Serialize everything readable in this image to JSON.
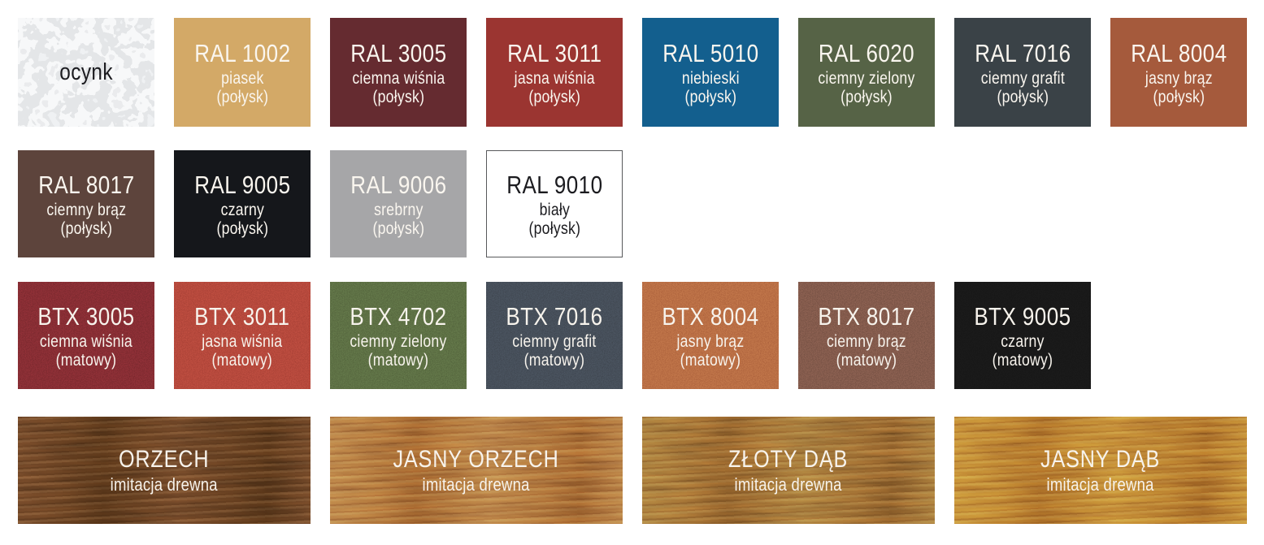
{
  "page": {
    "background": "#ffffff",
    "description_labels": {
      "gloss_finish": "(połysk)",
      "matte_finish": "(matowy)",
      "wood_imitation": "imitacja drewna"
    }
  },
  "palette": {
    "rows": [
      {
        "type": "standard",
        "items": [
          {
            "id": "ocynk",
            "code": "ocynk",
            "name": "",
            "finish": "",
            "bg": "#D3D5D8",
            "text": "#1B1B1F",
            "texture": "galvanized"
          },
          {
            "id": "ral-1002",
            "code": "RAL 1002",
            "name": "piasek",
            "finish": "(połysk)",
            "bg": "#D3A967",
            "text": "#FAF6EF",
            "texture": "solid"
          },
          {
            "id": "ral-3005",
            "code": "RAL 3005",
            "name": "ciemna wiśnia",
            "finish": "(połysk)",
            "bg": "#652B30",
            "text": "#FAF6EF",
            "texture": "solid"
          },
          {
            "id": "ral-3011",
            "code": "RAL 3011",
            "name": "jasna wiśnia",
            "finish": "(połysk)",
            "bg": "#9B3531",
            "text": "#FAF6EF",
            "texture": "solid"
          },
          {
            "id": "ral-5010",
            "code": "RAL 5010",
            "name": "niebieski",
            "finish": "(połysk)",
            "bg": "#135F8E",
            "text": "#FAF6EF",
            "texture": "solid"
          },
          {
            "id": "ral-6020",
            "code": "RAL 6020",
            "name": "ciemny zielony",
            "finish": "(połysk)",
            "bg": "#566346",
            "text": "#FAF6EF",
            "texture": "solid"
          },
          {
            "id": "ral-7016",
            "code": "RAL 7016",
            "name": "ciemny grafit",
            "finish": "(połysk)",
            "bg": "#3A4247",
            "text": "#FAF6EF",
            "texture": "solid"
          },
          {
            "id": "ral-8004",
            "code": "RAL 8004",
            "name": "jasny brąz",
            "finish": "(połysk)",
            "bg": "#A55A3C",
            "text": "#FAF6EF",
            "texture": "solid"
          }
        ]
      },
      {
        "type": "standard",
        "items": [
          {
            "id": "ral-8017",
            "code": "RAL 8017",
            "name": "ciemny brąz",
            "finish": "(połysk)",
            "bg": "#5D443C",
            "text": "#FAF6EF",
            "texture": "solid"
          },
          {
            "id": "ral-9005",
            "code": "RAL 9005",
            "name": "czarny",
            "finish": "(połysk)",
            "bg": "#15171B",
            "text": "#FAF6EF",
            "texture": "solid"
          },
          {
            "id": "ral-9006",
            "code": "RAL 9006",
            "name": "srebrny",
            "finish": "(połysk)",
            "bg": "#A6A6A8",
            "text": "#FAF6EF",
            "texture": "solid"
          },
          {
            "id": "ral-9010",
            "code": "RAL 9010",
            "name": "biały",
            "finish": "(połysk)",
            "bg": "#FFFFFF",
            "text": "#1B1B1F",
            "texture": "solid",
            "border": "#58595B"
          }
        ]
      },
      {
        "type": "standard",
        "items": [
          {
            "id": "btx-3005",
            "code": "BTX 3005",
            "name": "ciemna wiśnia",
            "finish": "(matowy)",
            "bg": "#6F252A",
            "text": "#F7F3EC",
            "texture": "matte"
          },
          {
            "id": "btx-3011",
            "code": "BTX 3011",
            "name": "jasna wiśnia",
            "finish": "(matowy)",
            "bg": "#A13B31",
            "text": "#F7F3EC",
            "texture": "matte"
          },
          {
            "id": "btx-4702",
            "code": "BTX 4702",
            "name": "ciemny zielony",
            "finish": "(matowy)",
            "bg": "#4C5C38",
            "text": "#F7F3EC",
            "texture": "matte"
          },
          {
            "id": "btx-7016",
            "code": "BTX 7016",
            "name": "ciemny grafit",
            "finish": "(matowy)",
            "bg": "#394049",
            "text": "#F7F3EC",
            "texture": "matte"
          },
          {
            "id": "btx-8004",
            "code": "BTX 8004",
            "name": "jasny brąz",
            "finish": "(matowy)",
            "bg": "#A65A38",
            "text": "#F7F3EC",
            "texture": "matte"
          },
          {
            "id": "btx-8017",
            "code": "BTX 8017",
            "name": "ciemny brąz",
            "finish": "(matowy)",
            "bg": "#6B4A3E",
            "text": "#F7F3EC",
            "texture": "matte"
          },
          {
            "id": "btx-9005",
            "code": "BTX 9005",
            "name": "czarny",
            "finish": "(matowy)",
            "bg": "#141414",
            "text": "#F7F3EC",
            "texture": "matte"
          }
        ]
      },
      {
        "type": "wood",
        "items": [
          {
            "id": "orzech",
            "code": "ORZECH",
            "name": "imitacja drewna",
            "finish": "",
            "bg": "#5E3B21",
            "bg2": "#4A2D15",
            "text": "#F7F3EC",
            "texture": "wood"
          },
          {
            "id": "jasny-orzech",
            "code": "JASNY ORZECH",
            "name": "imitacja drewna",
            "finish": "",
            "bg": "#A86C3B",
            "bg2": "#8C5628",
            "text": "#F7F3EC",
            "texture": "wood"
          },
          {
            "id": "zloty-dab",
            "code": "ZŁOTY DĄB",
            "name": "imitacja drewna",
            "finish": "",
            "bg": "#926832",
            "bg2": "#7A5224",
            "text": "#F7F3EC",
            "texture": "wood"
          },
          {
            "id": "jasny-dab",
            "code": "JASNY DĄB",
            "name": "imitacja drewna",
            "finish": "",
            "bg": "#B8772E",
            "bg2": "#9A5F22",
            "text": "#F7F3EC",
            "texture": "wood"
          }
        ]
      }
    ]
  }
}
